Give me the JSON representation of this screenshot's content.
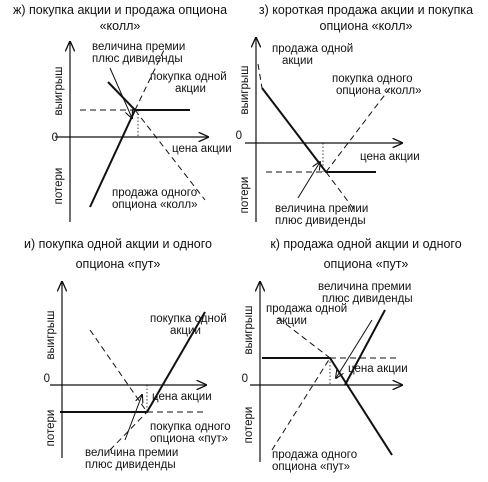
{
  "panels": [
    {
      "title": [
        "ж) покупка акции и продажа опциона",
        "«колл»"
      ],
      "y_positive": "выигрыш",
      "y_negative": "потери",
      "zero": "0",
      "x_axis": "цена акции",
      "labels": [
        [
          "величина премии",
          "плюс дивиденды"
        ],
        [
          "покупка одной",
          "акции"
        ],
        [
          "продажа одного",
          "опциона «колл»"
        ]
      ]
    },
    {
      "title": [
        "з) короткая продажа акции и покупка",
        "опциона «колл»"
      ],
      "y_positive": "выигрыш",
      "y_negative": "потери",
      "zero": "0",
      "x_axis": "цена акции",
      "labels": [
        [
          "продажа одной",
          "акции"
        ],
        [
          "покупка одного",
          "опциона «колл»"
        ],
        [
          "величина премии",
          "плюс дивиденды"
        ]
      ]
    },
    {
      "title": [
        "и) покупка одной акции и одного",
        "опциона «пут»"
      ],
      "y_positive": "выигрыш",
      "y_negative": "потери",
      "zero": "0",
      "x_axis": "цена акции",
      "labels": [
        [
          "покупка одной",
          "акции"
        ],
        [
          "величина премии",
          "плюс дивиденды"
        ],
        [
          "покупка одного",
          "опциона «пут»"
        ]
      ]
    },
    {
      "title": [
        "к) продажа одной акции и одного",
        "опциона «пут»"
      ],
      "y_positive": "выигрыш",
      "y_negative": "потери",
      "zero": "0",
      "x_axis": "цена акции",
      "labels": [
        [
          "величина премии",
          "плюс дивиденды"
        ],
        [
          "продажа одной",
          "акции"
        ],
        [
          "продажа одного",
          "опциона «пут»"
        ]
      ]
    }
  ]
}
